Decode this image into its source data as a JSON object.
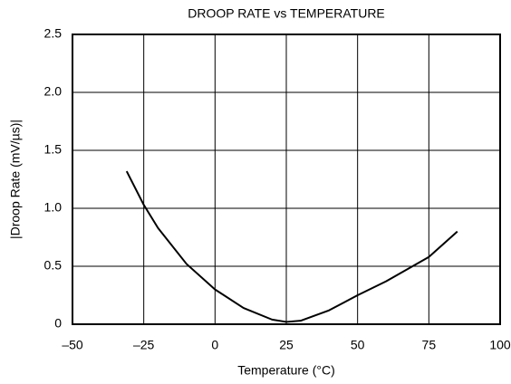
{
  "chart_data": {
    "type": "line",
    "title": "DROOP RATE vs TEMPERATURE",
    "xlabel": "Temperature (°C)",
    "ylabel": "|Droop Rate (mV/µs)|",
    "x": [
      -31,
      -25,
      -20,
      -10,
      0,
      10,
      20,
      25,
      30,
      40,
      50,
      60,
      75,
      85
    ],
    "series": [
      {
        "name": "Droop Rate",
        "color": "#000000",
        "values": [
          1.32,
          1.03,
          0.83,
          0.52,
          0.3,
          0.14,
          0.04,
          0.02,
          0.03,
          0.12,
          0.25,
          0.37,
          0.58,
          0.8
        ]
      }
    ],
    "xlim": [
      -50,
      100
    ],
    "xticks": [
      {
        "value": -50,
        "label": "–50"
      },
      {
        "value": -25,
        "label": "–25"
      },
      0,
      25,
      50,
      75,
      100
    ],
    "ylim": [
      0,
      2.5
    ],
    "yticks": [
      0,
      0.5,
      {
        "value": 1,
        "label": "1.0"
      },
      1.5,
      {
        "value": 2,
        "label": "2.0"
      },
      2.5
    ],
    "grid": true
  }
}
